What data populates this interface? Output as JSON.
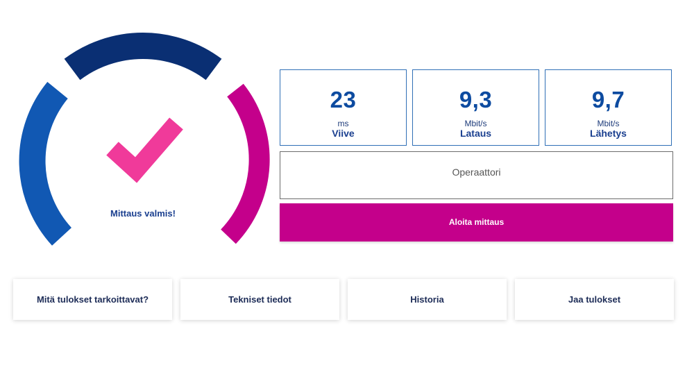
{
  "colors": {
    "arc_left": "#1158b3",
    "arc_top": "#0a2f73",
    "arc_right": "#c4008b",
    "checkmark": "#f03a9a",
    "accent": "#c4008b",
    "text_dark_blue": "#1a3f8f"
  },
  "gauge": {
    "status_label": "Mittaus valmis!",
    "icon": "checkmark-icon"
  },
  "metrics": [
    {
      "value": "23",
      "unit": "ms",
      "label": "Viive"
    },
    {
      "value": "9,3",
      "unit": "Mbit/s",
      "label": "Lataus"
    },
    {
      "value": "9,7",
      "unit": "Mbit/s",
      "label": "Lähetys"
    }
  ],
  "operator": {
    "label": "Operaattori"
  },
  "start_button": {
    "label": "Aloita mittaus"
  },
  "cards": [
    {
      "label": "Mitä tulokset tarkoittavat?"
    },
    {
      "label": "Tekniset tiedot"
    },
    {
      "label": "Historia"
    },
    {
      "label": "Jaa tulokset"
    }
  ]
}
